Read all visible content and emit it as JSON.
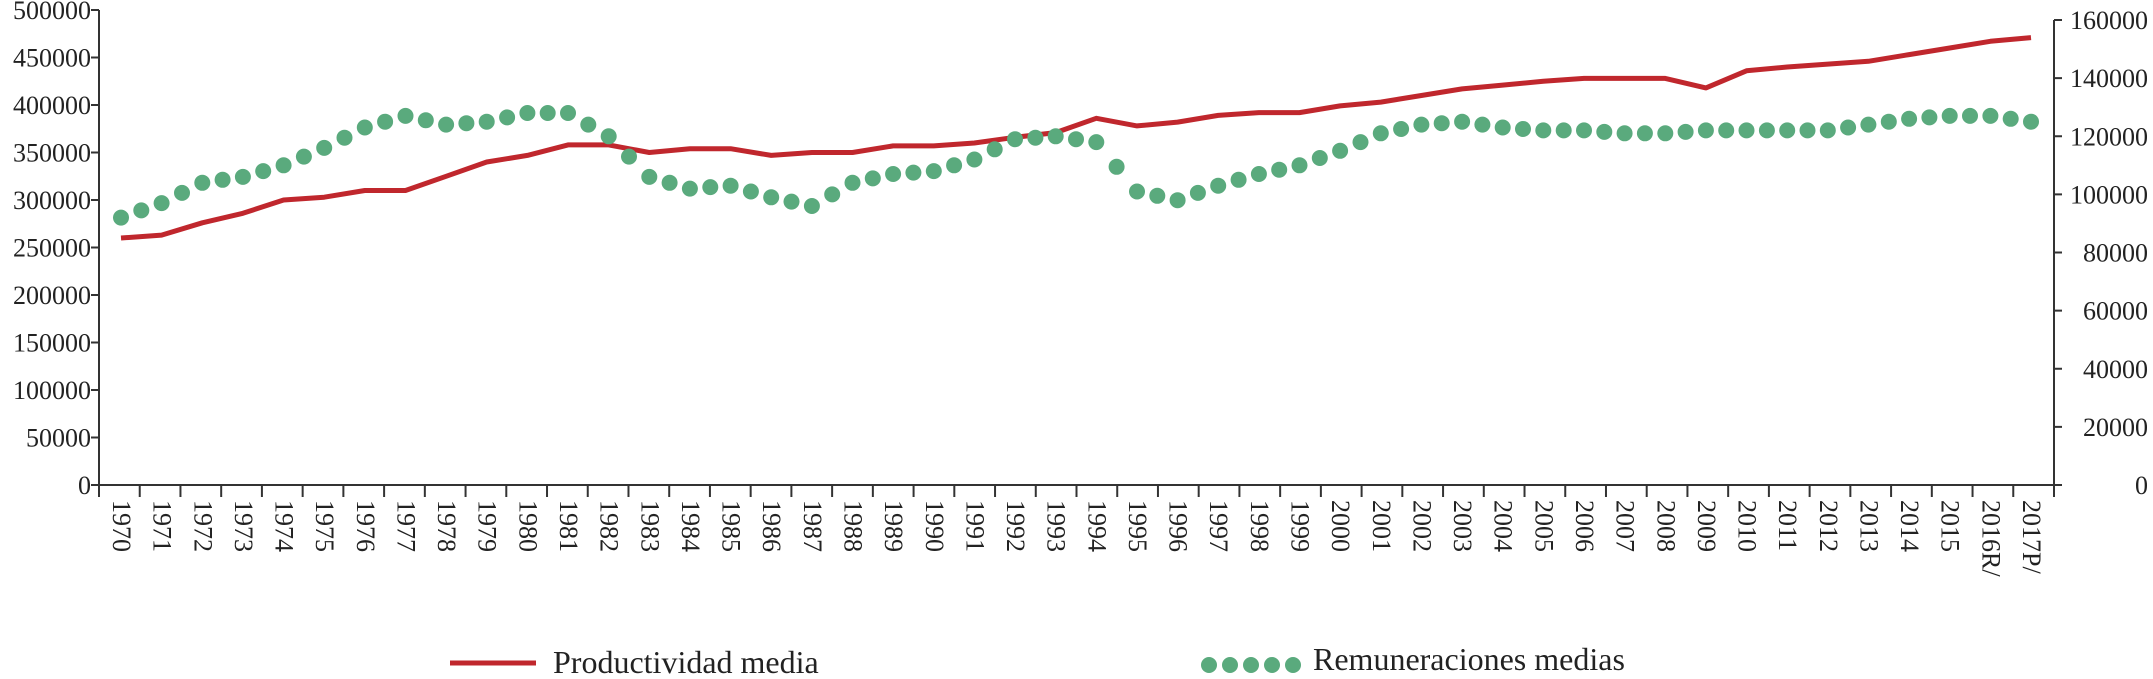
{
  "chart_data": {
    "type": "line",
    "categories": [
      "1970",
      "1971",
      "1972",
      "1973",
      "1974",
      "1975",
      "1976",
      "1977",
      "1978",
      "1979",
      "1980",
      "1981",
      "1982",
      "1983",
      "1984",
      "1985",
      "1986",
      "1987",
      "1988",
      "1989",
      "1990",
      "1991",
      "1992",
      "1993",
      "1994",
      "1995",
      "1996",
      "1997",
      "1998",
      "1999",
      "2000",
      "2001",
      "2002",
      "2003",
      "2004",
      "2005",
      "2006",
      "2007",
      "2008",
      "2009",
      "2010",
      "2011",
      "2012",
      "2013",
      "2014",
      "2015",
      "2016R/",
      "2017P/"
    ],
    "series": [
      {
        "name": "Productividad media",
        "axis": "left",
        "style": "line",
        "color": "#c0272d",
        "values": [
          260000,
          263000,
          276000,
          286000,
          300000,
          303000,
          310000,
          310000,
          325000,
          340000,
          347000,
          358000,
          358000,
          350000,
          354000,
          354000,
          347000,
          350000,
          350000,
          357000,
          357000,
          360000,
          366000,
          371000,
          386000,
          378000,
          382000,
          389000,
          392000,
          392000,
          399000,
          403000,
          410000,
          417000,
          421000,
          425000,
          428000,
          428000,
          428000,
          418000,
          436000,
          440000,
          443000,
          446000,
          453000,
          460000,
          467000,
          471000
        ]
      },
      {
        "name": "Remuneraciones medias",
        "axis": "right",
        "style": "dotted",
        "color": "#5aaa7d",
        "values": [
          92000,
          97000,
          104000,
          106000,
          110000,
          116000,
          123000,
          127000,
          124000,
          125000,
          128000,
          128000,
          120000,
          106000,
          102000,
          103000,
          99000,
          96000,
          104000,
          107000,
          108000,
          112000,
          119000,
          120000,
          118000,
          101000,
          98000,
          103000,
          107000,
          110000,
          115000,
          121000,
          124000,
          125000,
          123000,
          122000,
          122000,
          121000,
          121000,
          122000,
          122000,
          122000,
          122000,
          124000,
          126000,
          127000,
          127000,
          125000
        ]
      }
    ],
    "left_axis": {
      "min": 0,
      "max": 500000,
      "step": 50000,
      "tick_labels": [
        "0",
        "50000",
        "100000",
        "150000",
        "200000",
        "250000",
        "300000",
        "350000",
        "400000",
        "450000",
        "500000"
      ]
    },
    "right_axis": {
      "min": 0,
      "max": 160000,
      "step": 20000,
      "tick_labels": [
        "0",
        "20000",
        "40000",
        "60000",
        "80000",
        "100000",
        "120000",
        "140000",
        "160000"
      ]
    },
    "grid": false,
    "legend_position": "bottom",
    "title": "",
    "xlabel": "",
    "ylabel": ""
  },
  "legend": {
    "items": [
      {
        "label": "Productividad media",
        "style": "line",
        "color": "#c0272d"
      },
      {
        "label": "Remuneraciones medias",
        "style": "dotted",
        "color": "#5aaa7d"
      }
    ]
  }
}
